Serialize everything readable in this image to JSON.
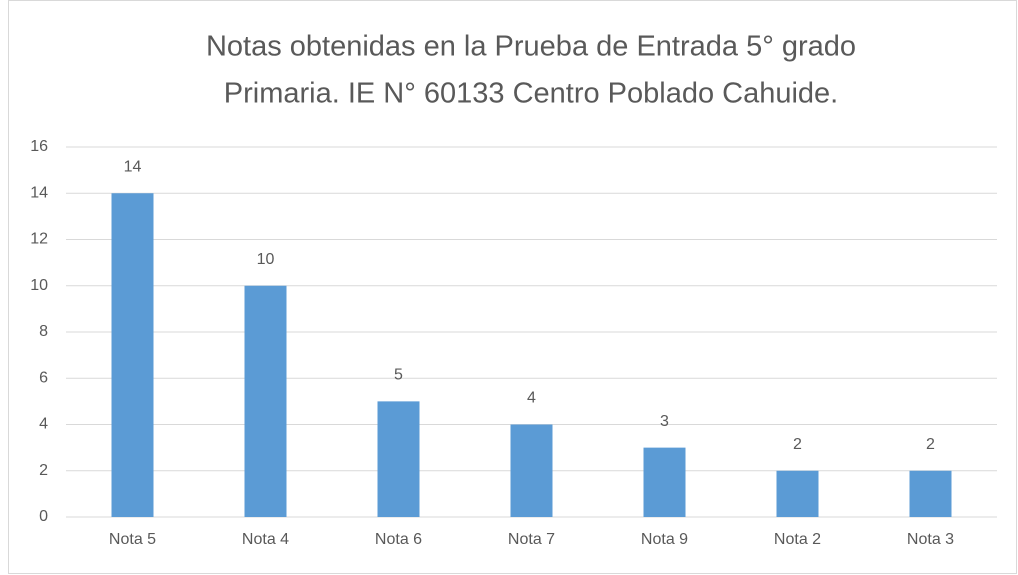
{
  "chart_data": {
    "type": "bar",
    "title": [
      "Notas obtenidas en la Prueba de Entrada 5° grado",
      "Primaria. IE N° 60133 Centro Poblado Cahuide."
    ],
    "categories": [
      "Nota 5",
      "Nota 4",
      "Nota 6",
      "Nota 7",
      "Nota 9",
      "Nota 2",
      "Nota 3"
    ],
    "values": [
      14,
      10,
      5,
      4,
      3,
      2,
      2
    ],
    "color": "#5b9bd5",
    "ylim": [
      0,
      16
    ],
    "yticks": [
      0,
      2,
      4,
      6,
      8,
      10,
      12,
      14,
      16
    ],
    "grid": true
  }
}
